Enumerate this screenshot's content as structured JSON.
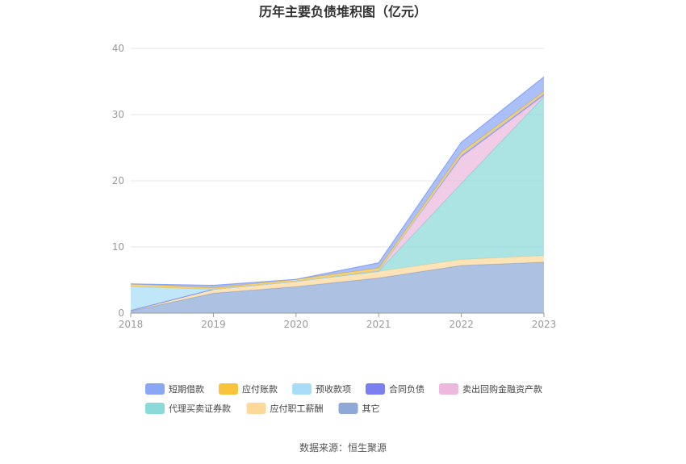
{
  "chart_data": {
    "type": "area",
    "stacked": true,
    "title": "历年主要负债堆积图（亿元）",
    "source": "数据来源：恒生聚源",
    "categories": [
      "2018",
      "2019",
      "2020",
      "2021",
      "2022",
      "2023"
    ],
    "y_ticks": [
      "0",
      "10",
      "20",
      "30",
      "40"
    ],
    "ylim": [
      0,
      40
    ],
    "grid": true,
    "legend_position": "bottom",
    "series": [
      {
        "name": "其它",
        "color": "#8EA9D8",
        "values": [
          0.3,
          3.0,
          4.0,
          5.3,
          7.2,
          7.7
        ]
      },
      {
        "name": "应付职工薪酬",
        "color": "#FDD89B",
        "values": [
          0.1,
          0.6,
          0.8,
          1.0,
          0.9,
          1.0
        ]
      },
      {
        "name": "代理买卖证券款",
        "color": "#8ADAD7",
        "values": [
          0.0,
          0.0,
          0.0,
          0.0,
          11.5,
          24.0
        ]
      },
      {
        "name": "卖出回购金融资产款",
        "color": "#ECB8DE",
        "values": [
          0.0,
          0.0,
          0.0,
          0.1,
          4.0,
          0.2
        ]
      },
      {
        "name": "合同负债",
        "color": "#7B7FEF",
        "values": [
          0.0,
          0.0,
          0.0,
          0.0,
          0.3,
          0.3
        ]
      },
      {
        "name": "预收款项",
        "color": "#A8DDF7",
        "values": [
          3.6,
          0.0,
          0.0,
          0.0,
          0.0,
          0.0
        ]
      },
      {
        "name": "应付账款",
        "color": "#F9C33B",
        "values": [
          0.4,
          0.2,
          0.3,
          0.4,
          0.4,
          0.3
        ]
      },
      {
        "name": "短期借款",
        "color": "#8AA6F5",
        "values": [
          0.0,
          0.4,
          0.0,
          0.8,
          1.5,
          2.2
        ]
      }
    ],
    "legend_order": [
      "短期借款",
      "应付账款",
      "预收款项",
      "合同负债",
      "卖出回购金融资产款",
      "代理买卖证券款",
      "应付职工薪酬",
      "其它"
    ]
  }
}
